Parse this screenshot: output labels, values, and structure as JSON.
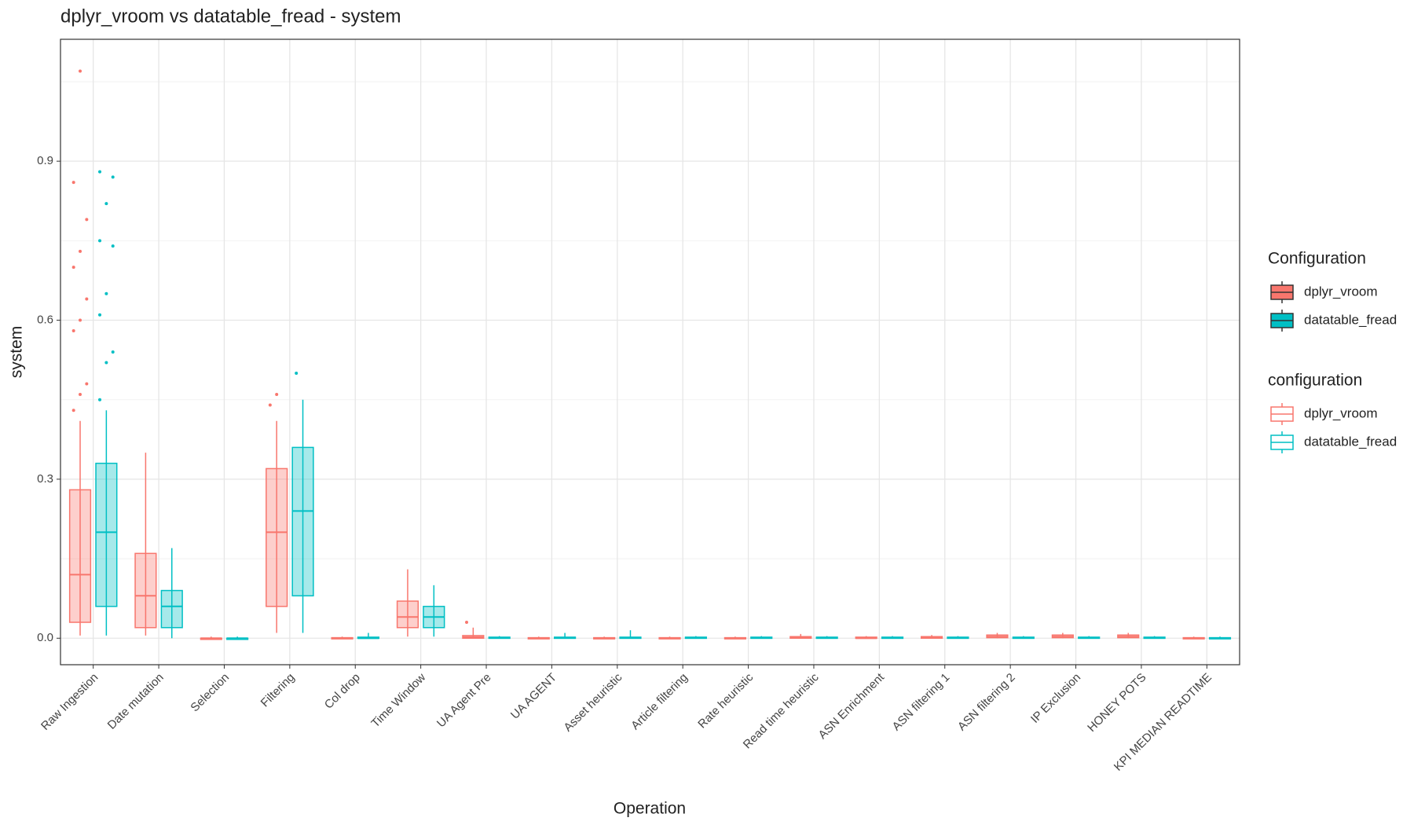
{
  "chart_data": {
    "type": "box",
    "title": "dplyr_vroom vs datatable_fread - system",
    "x_label": "Operation",
    "y_label": "system",
    "categories": [
      "Raw Ingestion",
      "Date mutation",
      "Selection",
      "Filtering",
      "Col drop",
      "Time Window",
      "UA Agent Pre",
      "UA AGENT",
      "Asset heuristic",
      "Article filtering",
      "Rate heuristic",
      "Read time heuristic",
      "ASN Enrichment",
      "ASN filtering 1",
      "ASN filtering 2",
      "IP Exclusion",
      "HONEY POTS",
      "KPI MEDIAN READTIME"
    ],
    "legend_titles": [
      "Configuration",
      "configuration"
    ],
    "ylim": [
      -0.05,
      1.13
    ],
    "yticks": [
      {
        "value": 0,
        "label": "0.0"
      },
      0.3,
      0.6,
      0.9
    ],
    "grid": true,
    "series": [
      {
        "name": "dplyr_vroom",
        "color": "#F8766D",
        "min": [
          0.005,
          0.005,
          0,
          0.01,
          0,
          0.003,
          0,
          0,
          0,
          0,
          0,
          0,
          0,
          0,
          0,
          0,
          0,
          0
        ],
        "q1": [
          0.03,
          0.02,
          0,
          0.06,
          0,
          0.02,
          0,
          0,
          0,
          0,
          0,
          0,
          0,
          0,
          0.001,
          0.001,
          0.001,
          0
        ],
        "median": [
          0.12,
          0.08,
          0,
          0.2,
          0,
          0.04,
          0.002,
          0,
          0,
          0,
          0,
          0.001,
          0,
          0.001,
          0.003,
          0.003,
          0.003,
          0
        ],
        "q3": [
          0.28,
          0.16,
          0,
          0.32,
          0.001,
          0.07,
          0.005,
          0.001,
          0.001,
          0.001,
          0.001,
          0.003,
          0.002,
          0.003,
          0.006,
          0.006,
          0.006,
          0.001
        ],
        "max": [
          0.41,
          0.35,
          0.003,
          0.41,
          0.003,
          0.13,
          0.02,
          0.003,
          0.003,
          0.003,
          0.003,
          0.008,
          0.004,
          0.006,
          0.01,
          0.01,
          0.01,
          0.003
        ],
        "outliers": [
          [
            0.43,
            0.46,
            0.48,
            0.58,
            0.6,
            0.64,
            0.7,
            0.73,
            0.79,
            0.86,
            1.07
          ],
          null,
          null,
          [
            0.44,
            0.46
          ],
          null,
          null,
          [
            0.03
          ],
          null,
          null,
          null,
          null,
          null,
          null,
          null,
          null,
          null,
          null,
          null
        ]
      },
      {
        "name": "datatable_fread",
        "color": "#00BFC4",
        "min": [
          0.005,
          0,
          0,
          0.01,
          0,
          0.003,
          0,
          0,
          0,
          0,
          0,
          0,
          0,
          0,
          0,
          0,
          0,
          0
        ],
        "q1": [
          0.06,
          0.02,
          0,
          0.08,
          0,
          0.02,
          0,
          0,
          0,
          0,
          0,
          0,
          0,
          0,
          0,
          0,
          0,
          0
        ],
        "median": [
          0.2,
          0.06,
          0,
          0.24,
          0,
          0.04,
          0.001,
          0.001,
          0.001,
          0.001,
          0.001,
          0.001,
          0.001,
          0.001,
          0.001,
          0.001,
          0.001,
          0
        ],
        "q3": [
          0.33,
          0.09,
          0,
          0.36,
          0.002,
          0.06,
          0.002,
          0.002,
          0.002,
          0.002,
          0.002,
          0.002,
          0.002,
          0.002,
          0.002,
          0.002,
          0.002,
          0.001
        ],
        "max": [
          0.43,
          0.17,
          0.003,
          0.45,
          0.01,
          0.1,
          0.004,
          0.01,
          0.015,
          0.004,
          0.004,
          0.004,
          0.004,
          0.004,
          0.004,
          0.004,
          0.004,
          0.003
        ],
        "outliers": [
          [
            0.45,
            0.52,
            0.54,
            0.61,
            0.65,
            0.74,
            0.75,
            0.82,
            0.87,
            0.88
          ],
          null,
          null,
          [
            0.5
          ],
          null,
          null,
          null,
          null,
          null,
          null,
          null,
          null,
          null,
          null,
          null,
          null,
          null,
          null
        ]
      }
    ]
  }
}
